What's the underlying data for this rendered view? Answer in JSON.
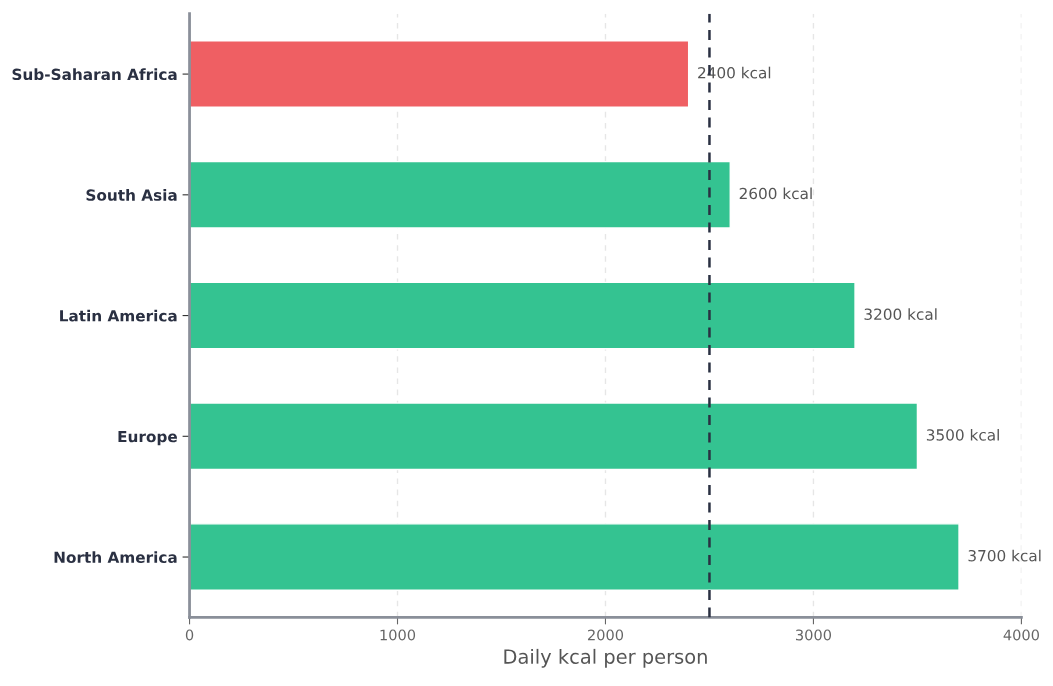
{
  "chart_data": {
    "type": "bar",
    "orientation": "horizontal",
    "categories": [
      "Sub-Saharan Africa",
      "South Asia",
      "Latin America",
      "Europe",
      "North America"
    ],
    "values": [
      2400,
      2600,
      3200,
      3500,
      3700
    ],
    "colors": [
      "#ef5f63",
      "#34c391",
      "#34c391",
      "#34c391",
      "#34c391"
    ],
    "value_labels": [
      "2400 kcal",
      "2600 kcal",
      "3200 kcal",
      "3500 kcal",
      "3700 kcal"
    ],
    "xlabel": "Daily kcal per person",
    "xlim": [
      0,
      4000
    ],
    "xticks": [
      0,
      1000,
      2000,
      3000,
      4000
    ],
    "ref_lines": [
      {
        "axis": "x",
        "value": 2500,
        "color": "#2a3042",
        "line_style": "dashed"
      }
    ],
    "grid": "x"
  }
}
